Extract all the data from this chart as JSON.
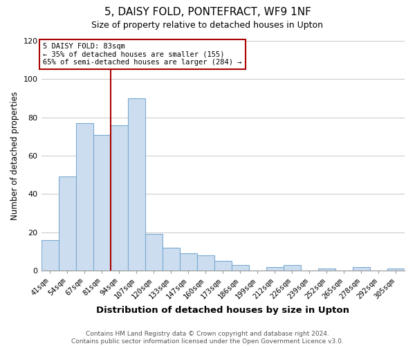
{
  "title": "5, DAISY FOLD, PONTEFRACT, WF9 1NF",
  "subtitle": "Size of property relative to detached houses in Upton",
  "xlabel": "Distribution of detached houses by size in Upton",
  "ylabel": "Number of detached properties",
  "bar_labels": [
    "41sqm",
    "54sqm",
    "67sqm",
    "81sqm",
    "94sqm",
    "107sqm",
    "120sqm",
    "133sqm",
    "147sqm",
    "160sqm",
    "173sqm",
    "186sqm",
    "199sqm",
    "212sqm",
    "226sqm",
    "239sqm",
    "252sqm",
    "265sqm",
    "278sqm",
    "292sqm",
    "305sqm"
  ],
  "bar_values": [
    16,
    49,
    77,
    71,
    76,
    90,
    19,
    12,
    9,
    8,
    5,
    3,
    0,
    2,
    3,
    0,
    1,
    0,
    2,
    0,
    1
  ],
  "bar_color": "#ccddf0",
  "bar_edge_color": "#7aaad0",
  "ylim": [
    0,
    120
  ],
  "yticks": [
    0,
    20,
    40,
    60,
    80,
    100,
    120
  ],
  "property_label": "5 DAISY FOLD: 83sqm",
  "annotation_line1": "← 35% of detached houses are smaller (155)",
  "annotation_line2": "65% of semi-detached houses are larger (284) →",
  "vline_color": "#aa0000",
  "annotation_box_edge": "#aa0000",
  "footer_line1": "Contains HM Land Registry data © Crown copyright and database right 2024.",
  "footer_line2": "Contains public sector information licensed under the Open Government Licence v3.0.",
  "background_color": "#ffffff",
  "grid_color": "#cccccc",
  "vline_x_index": 3.5
}
